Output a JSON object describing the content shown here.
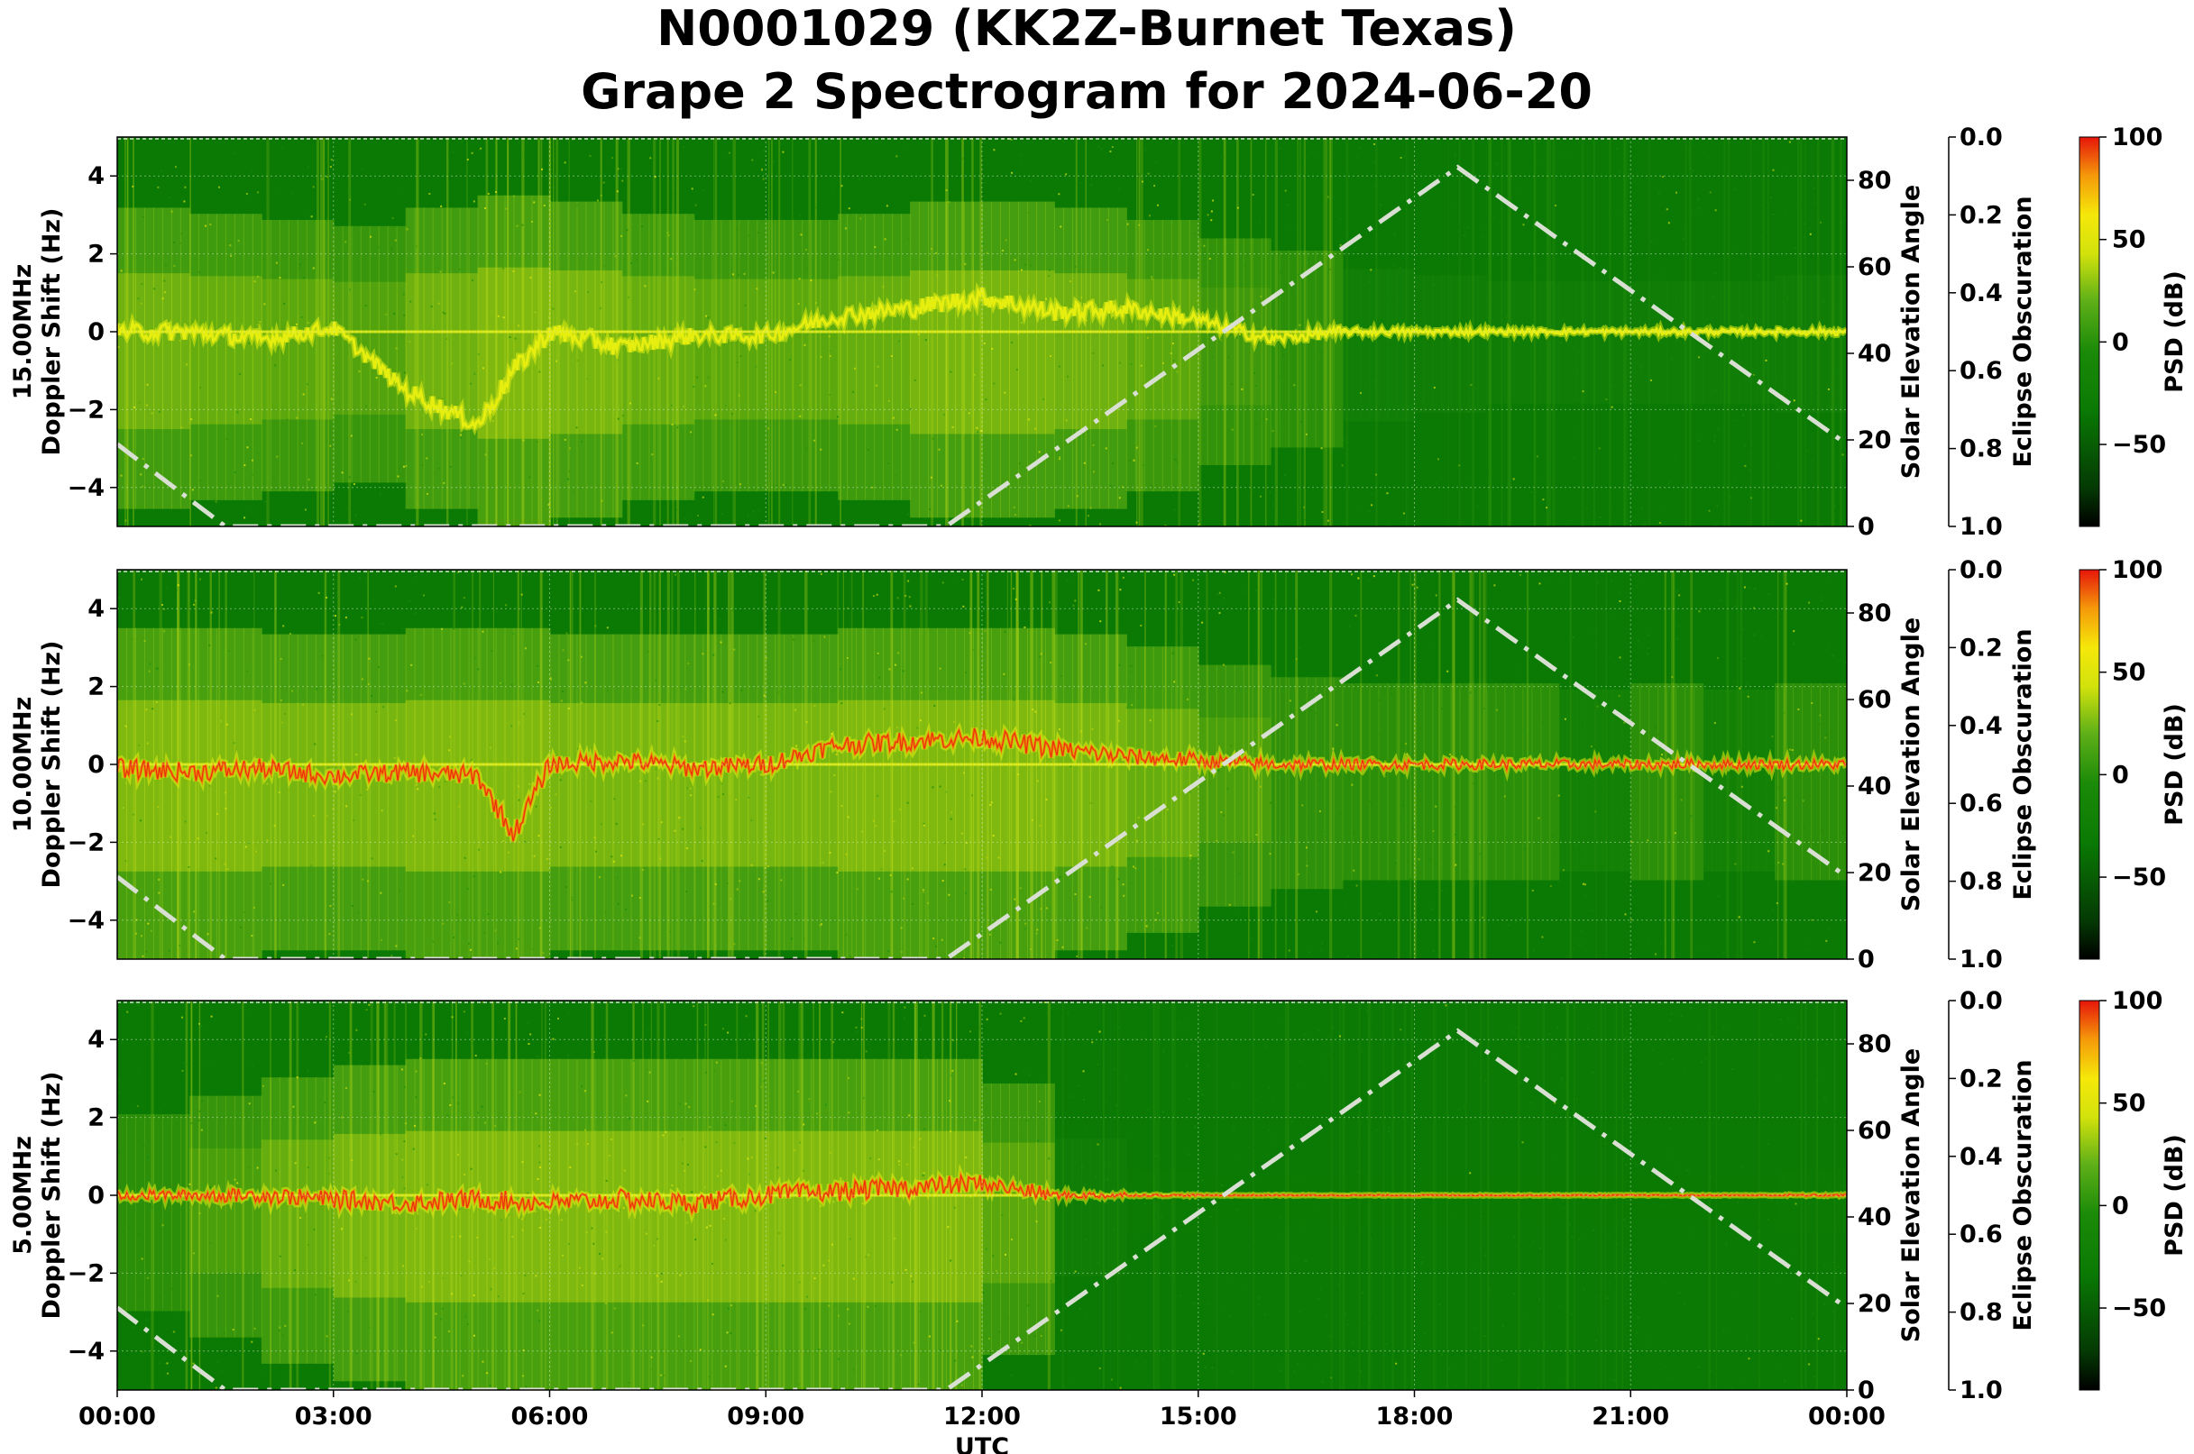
{
  "figure": {
    "title_line1": "N0001029 (KK2Z-Burnet Texas)",
    "title_line2": "Grape 2 Spectrogram for 2024-06-20"
  },
  "chart_data": [
    {
      "type": "heatmap",
      "band": "15.00MHz",
      "ylabel": "Doppler Shift (Hz)",
      "ylabel_band": "15.00MHz",
      "ylim": [
        -5,
        5
      ],
      "yticks": [
        -4,
        -2,
        0,
        2,
        4
      ],
      "y2label": "Solar Elevation Angle",
      "y2lim": [
        0,
        90
      ],
      "y2ticks": [
        0,
        20,
        40,
        60,
        80
      ],
      "eclipse_label": "Eclipse Obscuration",
      "eclipse_ticks": [
        "0.0",
        "0.2",
        "0.4",
        "0.6",
        "0.8",
        "1.0"
      ],
      "colorbar_label": "PSD (dB)",
      "colorbar_ticks": [
        100,
        50,
        0,
        -50
      ],
      "colorbar_range": [
        -90,
        100
      ],
      "xaxis_shown": false,
      "solar_elevation": [
        [
          0.0,
          19
        ],
        [
          1.5,
          0
        ],
        [
          11.5,
          0
        ],
        [
          18.6,
          83
        ],
        [
          24.0,
          19
        ]
      ],
      "doppler_trace": [
        [
          0,
          0
        ],
        [
          1,
          0
        ],
        [
          2,
          -0.2
        ],
        [
          3,
          0.1
        ],
        [
          4,
          -1.5
        ],
        [
          5,
          -2.4
        ],
        [
          5.5,
          -1.0
        ],
        [
          6,
          0
        ],
        [
          7,
          -0.4
        ],
        [
          8,
          -0.1
        ],
        [
          9,
          -0.1
        ],
        [
          10,
          0.4
        ],
        [
          11,
          0.6
        ],
        [
          12,
          0.9
        ],
        [
          13,
          0.5
        ],
        [
          14,
          0.6
        ],
        [
          15,
          0.3
        ],
        [
          16,
          -0.2
        ],
        [
          17,
          0
        ],
        [
          24,
          0
        ]
      ],
      "activity": [
        0.9,
        0.85,
        0.8,
        0.75,
        0.9,
        1.0,
        0.95,
        0.85,
        0.8,
        0.8,
        0.85,
        0.95,
        0.95,
        0.9,
        0.8,
        0.65,
        0.55,
        0.4,
        0.35,
        0.3,
        0.3,
        0.3,
        0.3,
        0.35
      ]
    },
    {
      "type": "heatmap",
      "band": "10.00MHz",
      "ylabel": "Doppler Shift (Hz)",
      "ylabel_band": "10.00MHz",
      "ylim": [
        -5,
        5
      ],
      "yticks": [
        -4,
        -2,
        0,
        2,
        4
      ],
      "y2label": "Solar Elevation Angle",
      "y2lim": [
        0,
        90
      ],
      "y2ticks": [
        0,
        20,
        40,
        60,
        80
      ],
      "eclipse_label": "Eclipse Obscuration",
      "eclipse_ticks": [
        "0.0",
        "0.2",
        "0.4",
        "0.6",
        "0.8",
        "1.0"
      ],
      "colorbar_label": "PSD (dB)",
      "colorbar_ticks": [
        100,
        50,
        0,
        -50
      ],
      "colorbar_range": [
        -90,
        100
      ],
      "xaxis_shown": false,
      "solar_elevation": [
        [
          0.0,
          19
        ],
        [
          1.5,
          0
        ],
        [
          11.5,
          0
        ],
        [
          18.6,
          83
        ],
        [
          24.0,
          19
        ]
      ],
      "doppler_trace": [
        [
          0,
          -0.1
        ],
        [
          1,
          -0.2
        ],
        [
          2,
          -0.1
        ],
        [
          3,
          -0.3
        ],
        [
          4,
          -0.2
        ],
        [
          5,
          -0.3
        ],
        [
          5.5,
          -1.8
        ],
        [
          6,
          0
        ],
        [
          7,
          0.1
        ],
        [
          8,
          -0.1
        ],
        [
          9,
          0
        ],
        [
          10,
          0.5
        ],
        [
          11,
          0.6
        ],
        [
          12,
          0.7
        ],
        [
          13,
          0.4
        ],
        [
          14,
          0.2
        ],
        [
          15,
          0.1
        ],
        [
          16,
          0
        ],
        [
          17,
          0
        ],
        [
          24,
          0
        ]
      ],
      "activity": [
        1.0,
        1.0,
        0.95,
        0.95,
        1.0,
        1.0,
        0.95,
        0.95,
        0.95,
        0.95,
        1.0,
        1.0,
        1.0,
        0.95,
        0.85,
        0.7,
        0.6,
        0.55,
        0.55,
        0.55,
        0.5,
        0.55,
        0.5,
        0.55
      ]
    },
    {
      "type": "heatmap",
      "band": "5.00MHz",
      "ylabel": "Doppler Shift (Hz)",
      "ylabel_band": "5.00MHz",
      "ylim": [
        -5,
        5
      ],
      "yticks": [
        -4,
        -2,
        0,
        2,
        4
      ],
      "y2label": "Solar Elevation Angle",
      "y2lim": [
        0,
        90
      ],
      "y2ticks": [
        0,
        20,
        40,
        60,
        80
      ],
      "eclipse_label": "Eclipse Obscuration",
      "eclipse_ticks": [
        "0.0",
        "0.2",
        "0.4",
        "0.6",
        "0.8",
        "1.0"
      ],
      "colorbar_label": "PSD (dB)",
      "colorbar_ticks": [
        100,
        50,
        0,
        -50
      ],
      "colorbar_range": [
        -90,
        100
      ],
      "xaxis_shown": true,
      "xlabel": "UTC",
      "xticks": [
        "00:00",
        "03:00",
        "06:00",
        "09:00",
        "12:00",
        "15:00",
        "18:00",
        "21:00",
        "00:00"
      ],
      "xlim": [
        0,
        24
      ],
      "solar_elevation": [
        [
          0.0,
          19
        ],
        [
          1.5,
          0
        ],
        [
          11.5,
          0
        ],
        [
          18.6,
          83
        ],
        [
          24.0,
          19
        ]
      ],
      "doppler_trace": [
        [
          0,
          0
        ],
        [
          2,
          0
        ],
        [
          3,
          -0.1
        ],
        [
          4,
          -0.2
        ],
        [
          5,
          -0.1
        ],
        [
          6,
          -0.2
        ],
        [
          7,
          -0.1
        ],
        [
          8,
          -0.2
        ],
        [
          9,
          0
        ],
        [
          10,
          0.1
        ],
        [
          11,
          0.2
        ],
        [
          12,
          0.3
        ],
        [
          13,
          0
        ],
        [
          24,
          0
        ]
      ],
      "activity": [
        0.55,
        0.7,
        0.85,
        0.95,
        1.0,
        1.0,
        1.0,
        1.0,
        1.0,
        1.0,
        1.0,
        1.0,
        0.8,
        0.35,
        0.1,
        0.05,
        0.05,
        0.05,
        0.05,
        0.05,
        0.05,
        0.05,
        0.05,
        0.1
      ]
    }
  ],
  "colors": {
    "background_green": "#0a7a04",
    "trace_yellow": "#e6ee10",
    "trace_orange": "#f08a0a",
    "trace_red": "#e61a0a",
    "solar_line": "#d9dfd2"
  }
}
